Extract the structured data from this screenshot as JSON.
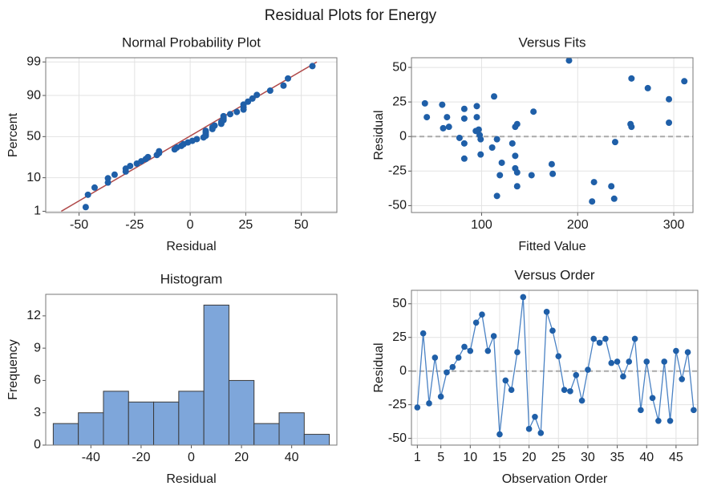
{
  "title": "Residual Plots for Energy",
  "chart_data": [
    {
      "type": "probability",
      "title": "Normal Probability Plot",
      "x_label": "Residual",
      "y_label": "Percent",
      "x": [
        -47,
        -46,
        -43,
        -37,
        -37,
        -34,
        -29,
        -29,
        -27,
        -24,
        -22,
        -20,
        -19,
        -15,
        -14,
        -14,
        -7,
        -6,
        -4,
        -3,
        -1,
        1,
        3,
        6,
        7,
        7,
        7,
        7,
        10,
        10,
        11,
        14,
        14,
        15,
        15,
        15,
        18,
        21,
        24,
        24,
        24,
        26,
        28,
        30,
        36,
        42,
        44,
        55
      ],
      "values": [
        1.4,
        3.5,
        5.6,
        7.6,
        9.7,
        11.8,
        13.8,
        15.9,
        18.0,
        20.0,
        22.1,
        24.2,
        26.2,
        28.3,
        30.4,
        32.4,
        34.5,
        36.6,
        38.6,
        40.7,
        42.8,
        44.8,
        46.9,
        49.0,
        51.0,
        53.1,
        55.2,
        57.2,
        59.3,
        61.4,
        63.4,
        65.5,
        67.6,
        69.6,
        71.7,
        73.8,
        75.8,
        77.9,
        80.0,
        82.0,
        84.1,
        86.2,
        88.2,
        90.3,
        92.4,
        94.4,
        96.5,
        98.6
      ],
      "fit_line": {
        "x": [
          -58,
          57
        ],
        "y": [
          1,
          99
        ]
      },
      "color": "#1f5fa8",
      "line_color": "#b04a4a",
      "xlim": [
        -65,
        66
      ],
      "xticks": [
        -50,
        -25,
        0,
        25,
        50
      ],
      "ylim": [
        0.9,
        99.3
      ],
      "yticks": [
        1,
        10,
        50,
        90,
        99
      ],
      "yscale": "probability",
      "grid": true
    },
    {
      "type": "scatter",
      "title": "Versus Fits",
      "x_label": "Fitted Value",
      "y_label": "Residual",
      "x": [
        41,
        43,
        59,
        60,
        64,
        66,
        77,
        82,
        82,
        82,
        82,
        95,
        95,
        97,
        98,
        99,
        99,
        111,
        113,
        116,
        116,
        121,
        119,
        132,
        135,
        137,
        135,
        135,
        137,
        137,
        152,
        154,
        173,
        174,
        191,
        217,
        215,
        235,
        238,
        239,
        256,
        255,
        256,
        273,
        295,
        295,
        311,
        94
      ],
      "values": [
        24,
        14,
        23,
        6,
        14,
        7,
        -1,
        20,
        13,
        -5,
        -16,
        22,
        14,
        5,
        1,
        -13,
        -2,
        -8,
        29,
        -2,
        -43,
        -19,
        -28,
        -5,
        7,
        9,
        -14,
        -23,
        -26,
        -36,
        -28,
        18,
        -20,
        -27,
        55,
        -33,
        -47,
        -36,
        -45,
        -4,
        42,
        9,
        7,
        35,
        27,
        10,
        40,
        4
      ],
      "color": "#1f5fa8",
      "reference_line": 0,
      "xlim": [
        27,
        320
      ],
      "xticks": [
        100,
        200,
        300
      ],
      "ylim": [
        -55,
        57
      ],
      "yticks": [
        -50,
        -25,
        0,
        25,
        50
      ],
      "grid": true
    },
    {
      "type": "histogram",
      "title": "Histogram",
      "x_label": "Residual",
      "y_label": "Frequency",
      "bins": [
        -55,
        -45,
        -35,
        -25,
        -15,
        -5,
        5,
        15,
        25,
        35,
        45,
        55
      ],
      "values": [
        2,
        3,
        5,
        4,
        4,
        5,
        13,
        6,
        2,
        3,
        1
      ],
      "color": "#7ea6da",
      "xlim": [
        -58,
        58
      ],
      "xticks": [
        -40,
        -20,
        0,
        20,
        40
      ],
      "ylim": [
        0,
        14
      ],
      "yticks": [
        0,
        3,
        6,
        9,
        12
      ],
      "grid": false
    },
    {
      "type": "line",
      "title": "Versus Order",
      "x_label": "Observation Order",
      "y_label": "Residual",
      "x": [
        1,
        2,
        3,
        4,
        5,
        6,
        7,
        8,
        9,
        10,
        11,
        12,
        13,
        14,
        15,
        16,
        17,
        18,
        19,
        20,
        21,
        22,
        23,
        24,
        25,
        26,
        27,
        28,
        29,
        30,
        31,
        32,
        33,
        34,
        35,
        36,
        37,
        38,
        39,
        40,
        41,
        42,
        43,
        44,
        45,
        46,
        47,
        48
      ],
      "values": [
        -27,
        28,
        -24,
        10,
        -19,
        -1,
        3,
        10,
        18,
        15,
        36,
        42,
        15,
        26,
        -47,
        -7,
        -14,
        14,
        55,
        -43,
        -34,
        -46,
        44,
        30,
        11,
        -14,
        -15,
        -3,
        -22,
        1,
        24,
        21,
        24,
        6,
        7,
        -4,
        7,
        24,
        -29,
        7,
        -20,
        -37,
        7,
        -37,
        15,
        -6,
        14,
        -29
      ],
      "color": "#1f5fa8",
      "reference_line": 0,
      "xlim": [
        0,
        48.7
      ],
      "xticks": [
        1,
        5,
        10,
        15,
        20,
        25,
        30,
        35,
        40,
        45
      ],
      "ylim": [
        -55,
        60
      ],
      "yticks": [
        -50,
        -25,
        0,
        25,
        50
      ],
      "grid": true
    }
  ]
}
